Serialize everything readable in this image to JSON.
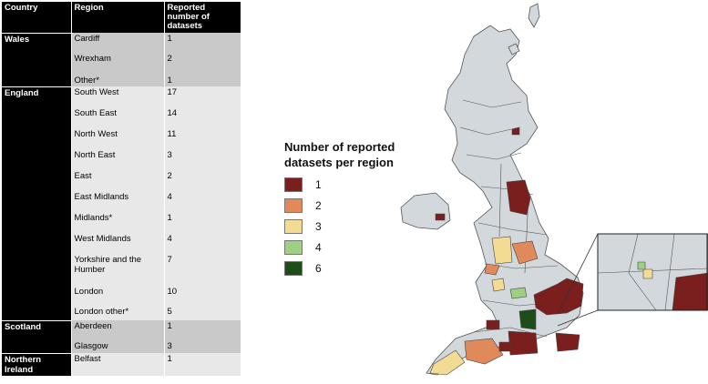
{
  "table": {
    "headers": [
      "Country",
      "Region",
      "Reported number of datasets"
    ],
    "groups": [
      {
        "country": "Wales",
        "rows": [
          {
            "region": "Cardiff",
            "count": "1"
          },
          {
            "region": "Wrexham",
            "count": "2"
          },
          {
            "region": "Other*",
            "count": "1"
          }
        ]
      },
      {
        "country": "England",
        "rows": [
          {
            "region": "South West",
            "count": "17"
          },
          {
            "region": "South East",
            "count": "14"
          },
          {
            "region": "North West",
            "count": "11"
          },
          {
            "region": "North East",
            "count": "3"
          },
          {
            "region": "East",
            "count": "2"
          },
          {
            "region": "East Midlands",
            "count": "4"
          },
          {
            "region": "Midlands*",
            "count": "1"
          },
          {
            "region": "West Midlands",
            "count": "4"
          },
          {
            "region": "Yorkshire and the Humber",
            "count": "7"
          },
          {
            "region": "London",
            "count": "10"
          },
          {
            "region": "London other*",
            "count": "5"
          }
        ]
      },
      {
        "country": "Scotland",
        "rows": [
          {
            "region": "Aberdeen",
            "count": "1"
          },
          {
            "region": "Glasgow",
            "count": "3"
          }
        ]
      },
      {
        "country": "Northern Ireland",
        "rows": [
          {
            "region": "Belfast",
            "count": "1"
          }
        ]
      }
    ]
  },
  "legend": {
    "title": "Number of reported datasets per region",
    "items": [
      {
        "label": "1",
        "color": "#7b1e1e"
      },
      {
        "label": "2",
        "color": "#e0895a"
      },
      {
        "label": "3",
        "color": "#f2dc94"
      },
      {
        "label": "4",
        "color": "#9fcf83"
      },
      {
        "label": "6",
        "color": "#1f4d1a"
      }
    ]
  },
  "map": {
    "base_color": "#d3d8dc",
    "border_color": "#555555"
  }
}
